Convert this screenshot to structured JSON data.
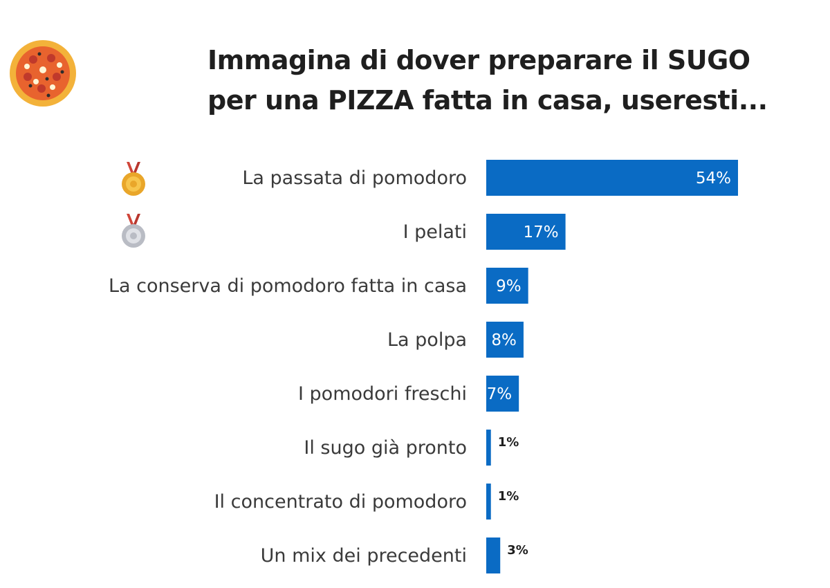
{
  "title_lines": [
    "Immagina di dover preparare il SUGO",
    "per una PIZZA fatta in casa, useresti..."
  ],
  "icons": {
    "header": "pizza-icon",
    "rank_1": "gold-medal-icon",
    "rank_2": "silver-medal-icon"
  },
  "colors": {
    "bar": "#0a6bc4",
    "pizza_crust": "#f3b23a",
    "pizza_sauce": "#e8632e",
    "gold": "#e9a62a",
    "silver": "#b9bcc4",
    "ribbon": "#d0463a"
  },
  "chart_data": {
    "type": "bar",
    "orientation": "horizontal",
    "title": "Immagina di dover preparare il SUGO per una PIZZA fatta in casa, useresti...",
    "categories": [
      "La passata di pomodoro",
      "I pelati",
      "La conserva di pomodoro fatta in casa",
      "La polpa",
      "I pomodori freschi",
      "Il sugo già pronto",
      "Il concentrato di pomodoro",
      "Un mix dei precedenti"
    ],
    "values": [
      54,
      17,
      9,
      8,
      7,
      1,
      1,
      3
    ],
    "value_labels": [
      "54%",
      "17%",
      "9%",
      "8%",
      "7%",
      "1%",
      "1%",
      "3%"
    ],
    "unit": "%",
    "xlim": [
      0,
      100
    ],
    "grid": false,
    "legend": "none"
  }
}
